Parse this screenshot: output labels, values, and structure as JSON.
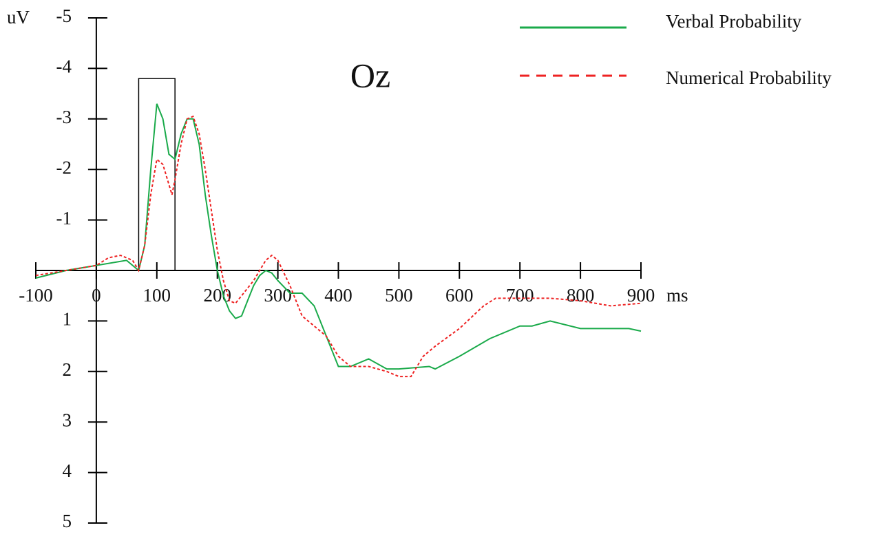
{
  "chart_data": {
    "type": "line",
    "title": "Oz",
    "ylabel": "uV",
    "xlabel": "ms",
    "xlim": [
      -100,
      900
    ],
    "ylim": [
      5,
      -5
    ],
    "xticks": [
      -100,
      0,
      100,
      200,
      300,
      400,
      500,
      600,
      700,
      800,
      900
    ],
    "yticks": [
      -5,
      -4,
      -3,
      -2,
      -1,
      1,
      2,
      3,
      4,
      5
    ],
    "legend": "upper right",
    "highlight": {
      "x": [
        70,
        130
      ],
      "y": [
        -3.8,
        0
      ]
    },
    "series": [
      {
        "name": "Verbal Probability",
        "color": "#1aaa4a",
        "dash": false,
        "x": [
          -100,
          -50,
          0,
          50,
          70,
          80,
          90,
          100,
          110,
          120,
          130,
          140,
          150,
          160,
          170,
          180,
          190,
          200,
          210,
          220,
          230,
          240,
          250,
          260,
          270,
          280,
          290,
          300,
          320,
          340,
          360,
          380,
          400,
          420,
          450,
          480,
          500,
          550,
          560,
          600,
          650,
          700,
          720,
          750,
          800,
          850,
          880,
          900
        ],
        "values": [
          0.15,
          0.0,
          -0.1,
          -0.2,
          0.0,
          -0.5,
          -2.0,
          -3.3,
          -3.0,
          -2.3,
          -2.2,
          -2.7,
          -3.0,
          -3.0,
          -2.5,
          -1.5,
          -0.7,
          0.0,
          0.5,
          0.8,
          0.95,
          0.9,
          0.6,
          0.3,
          0.1,
          0.0,
          0.05,
          0.2,
          0.45,
          0.45,
          0.7,
          1.3,
          1.9,
          1.9,
          1.75,
          1.95,
          1.95,
          1.9,
          1.95,
          1.7,
          1.35,
          1.1,
          1.1,
          1.0,
          1.15,
          1.15,
          1.15,
          1.2
        ]
      },
      {
        "name": "Numerical Probability",
        "color": "#ee2222",
        "dash": true,
        "x": [
          -100,
          -50,
          0,
          20,
          40,
          60,
          70,
          80,
          90,
          100,
          110,
          120,
          125,
          130,
          140,
          150,
          160,
          170,
          180,
          190,
          200,
          210,
          220,
          230,
          240,
          260,
          280,
          290,
          300,
          320,
          340,
          360,
          380,
          400,
          420,
          450,
          480,
          500,
          520,
          540,
          560,
          600,
          640,
          660,
          700,
          750,
          800,
          850,
          900
        ],
        "values": [
          0.1,
          0.0,
          -0.1,
          -0.25,
          -0.3,
          -0.2,
          0.0,
          -0.5,
          -1.5,
          -2.2,
          -2.1,
          -1.7,
          -1.5,
          -1.8,
          -2.5,
          -3.0,
          -3.05,
          -2.7,
          -2.0,
          -1.2,
          -0.4,
          0.2,
          0.6,
          0.65,
          0.5,
          0.2,
          -0.2,
          -0.3,
          -0.2,
          0.3,
          0.9,
          1.1,
          1.3,
          1.7,
          1.9,
          1.9,
          2.0,
          2.1,
          2.1,
          1.7,
          1.5,
          1.15,
          0.7,
          0.55,
          0.55,
          0.55,
          0.6,
          0.7,
          0.65
        ]
      }
    ]
  }
}
